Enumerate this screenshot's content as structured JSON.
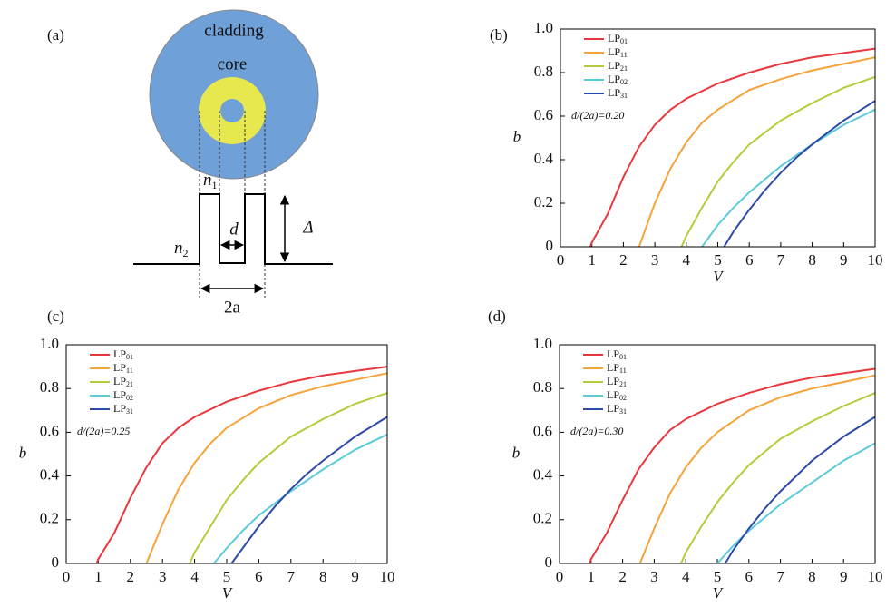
{
  "diagram": {
    "label": "(a)",
    "cladding": "cladding",
    "core": "core",
    "n1": {
      "symbol": "n",
      "sub": "1"
    },
    "n2": {
      "symbol": "n",
      "sub": "2"
    },
    "d": "d",
    "delta": "Δ",
    "width": "2a"
  },
  "chart_data": [
    {
      "type": "line",
      "title": "(b)",
      "annotation": "d/(2a)=0.20",
      "xlabel": "V",
      "ylabel": "b",
      "xlim": [
        0,
        10
      ],
      "xticks": [
        0,
        1,
        2,
        3,
        4,
        5,
        6,
        7,
        8,
        9,
        10
      ],
      "ylim": [
        0,
        1
      ],
      "yticks": [
        0,
        0.2,
        0.4,
        0.6,
        0.8,
        {
          "value": 1,
          "label": "1.0"
        }
      ],
      "series": [
        {
          "name": "LP01",
          "color": "#e8383d",
          "x": [
            0.95,
            1,
            1.5,
            2,
            2.5,
            3,
            3.5,
            4,
            5,
            6,
            7,
            8,
            9,
            10
          ],
          "values": [
            0,
            0.02,
            0.15,
            0.32,
            0.46,
            0.56,
            0.63,
            0.68,
            0.75,
            0.8,
            0.84,
            0.87,
            0.89,
            0.91
          ]
        },
        {
          "name": "LP11",
          "color": "#f5a33a",
          "x": [
            2.5,
            3,
            3.5,
            4,
            4.5,
            5,
            6,
            7,
            8,
            9,
            10
          ],
          "values": [
            0,
            0.2,
            0.36,
            0.48,
            0.57,
            0.63,
            0.72,
            0.77,
            0.81,
            0.84,
            0.87
          ]
        },
        {
          "name": "LP21",
          "color": "#b5cc3a",
          "x": [
            3.85,
            4,
            4.5,
            5,
            5.5,
            6,
            7,
            8,
            9,
            10
          ],
          "values": [
            0,
            0.05,
            0.18,
            0.3,
            0.39,
            0.47,
            0.58,
            0.66,
            0.73,
            0.78
          ]
        },
        {
          "name": "LP02",
          "color": "#5ccbd8",
          "x": [
            4.5,
            5,
            5.5,
            6,
            7,
            8,
            9,
            10
          ],
          "values": [
            0,
            0.1,
            0.18,
            0.25,
            0.37,
            0.47,
            0.56,
            0.63
          ]
        },
        {
          "name": "LP31",
          "color": "#2e4aa8",
          "x": [
            5.2,
            5.5,
            6,
            6.5,
            7,
            7.5,
            8,
            9,
            10
          ],
          "values": [
            0,
            0.07,
            0.17,
            0.26,
            0.34,
            0.41,
            0.47,
            0.58,
            0.67
          ]
        }
      ]
    },
    {
      "type": "line",
      "title": "(c)",
      "annotation": "d/(2a)=0.25",
      "xlabel": "V",
      "ylabel": "b",
      "xlim": [
        0,
        10
      ],
      "xticks": [
        0,
        1,
        2,
        3,
        4,
        5,
        6,
        7,
        8,
        9,
        10
      ],
      "ylim": [
        0,
        1
      ],
      "yticks": [
        0,
        0.2,
        0.4,
        0.6,
        0.8,
        {
          "value": 1,
          "label": "1.0"
        }
      ],
      "series": [
        {
          "name": "LP01",
          "color": "#e8383d",
          "x": [
            0.95,
            1,
            1.5,
            2,
            2.5,
            3,
            3.5,
            4,
            5,
            6,
            7,
            8,
            9,
            10
          ],
          "values": [
            0,
            0.02,
            0.14,
            0.3,
            0.44,
            0.55,
            0.62,
            0.67,
            0.74,
            0.79,
            0.83,
            0.86,
            0.88,
            0.9
          ]
        },
        {
          "name": "LP11",
          "color": "#f5a33a",
          "x": [
            2.5,
            3,
            3.5,
            4,
            4.5,
            5,
            6,
            7,
            8,
            9,
            10
          ],
          "values": [
            0,
            0.18,
            0.34,
            0.46,
            0.55,
            0.62,
            0.71,
            0.77,
            0.81,
            0.84,
            0.87
          ]
        },
        {
          "name": "LP21",
          "color": "#b5cc3a",
          "x": [
            3.85,
            4,
            4.5,
            5,
            5.5,
            6,
            7,
            8,
            9,
            10
          ],
          "values": [
            0,
            0.05,
            0.17,
            0.29,
            0.38,
            0.46,
            0.58,
            0.66,
            0.73,
            0.78
          ]
        },
        {
          "name": "LP02",
          "color": "#5ccbd8",
          "x": [
            4.6,
            5,
            5.5,
            6,
            7,
            8,
            9,
            10
          ],
          "values": [
            0,
            0.07,
            0.15,
            0.22,
            0.33,
            0.43,
            0.52,
            0.59
          ]
        },
        {
          "name": "LP31",
          "color": "#2e4aa8",
          "x": [
            5.15,
            5.5,
            6,
            6.5,
            7,
            7.5,
            8,
            9,
            10
          ],
          "values": [
            0,
            0.07,
            0.17,
            0.26,
            0.34,
            0.41,
            0.47,
            0.58,
            0.67
          ]
        }
      ]
    },
    {
      "type": "line",
      "title": "(d)",
      "annotation": "d/(2a)=0.30",
      "xlabel": "V",
      "ylabel": "b",
      "xlim": [
        0,
        10
      ],
      "xticks": [
        0,
        1,
        2,
        3,
        4,
        5,
        6,
        7,
        8,
        9,
        10
      ],
      "ylim": [
        0,
        1
      ],
      "yticks": [
        0,
        0.2,
        0.4,
        0.6,
        0.8,
        {
          "value": 1,
          "label": "1.0"
        }
      ],
      "series": [
        {
          "name": "LP01",
          "color": "#e8383d",
          "x": [
            0.95,
            1,
            1.5,
            2,
            2.5,
            3,
            3.5,
            4,
            5,
            6,
            7,
            8,
            9,
            10
          ],
          "values": [
            0,
            0.02,
            0.14,
            0.29,
            0.43,
            0.53,
            0.61,
            0.66,
            0.73,
            0.78,
            0.82,
            0.85,
            0.87,
            0.89
          ]
        },
        {
          "name": "LP11",
          "color": "#f5a33a",
          "x": [
            2.55,
            3,
            3.5,
            4,
            4.5,
            5,
            6,
            7,
            8,
            9,
            10
          ],
          "values": [
            0,
            0.16,
            0.32,
            0.44,
            0.53,
            0.6,
            0.7,
            0.76,
            0.8,
            0.83,
            0.86
          ]
        },
        {
          "name": "LP21",
          "color": "#b5cc3a",
          "x": [
            3.85,
            4,
            4.5,
            5,
            5.5,
            6,
            7,
            8,
            9,
            10
          ],
          "values": [
            0,
            0.05,
            0.17,
            0.28,
            0.37,
            0.45,
            0.57,
            0.65,
            0.72,
            0.78
          ]
        },
        {
          "name": "LP02",
          "color": "#5ccbd8",
          "x": [
            5.0,
            5.5,
            6,
            7,
            8,
            9,
            10
          ],
          "values": [
            0,
            0.08,
            0.15,
            0.27,
            0.37,
            0.47,
            0.55
          ]
        },
        {
          "name": "LP31",
          "color": "#2e4aa8",
          "x": [
            5.25,
            5.5,
            6,
            6.5,
            7,
            7.5,
            8,
            9,
            10
          ],
          "values": [
            0,
            0.06,
            0.16,
            0.25,
            0.33,
            0.4,
            0.47,
            0.58,
            0.67
          ]
        }
      ]
    }
  ]
}
